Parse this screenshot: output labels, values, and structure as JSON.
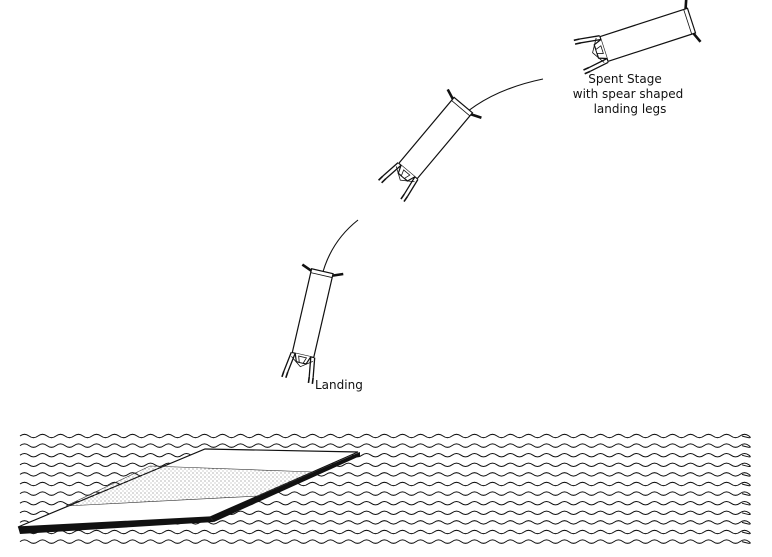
{
  "labels": {
    "spent_stage_line1": "Spent Stage",
    "spent_stage_line2": "with spear shaped",
    "spent_stage_line3": "landing legs",
    "landing": "Landing"
  },
  "colors": {
    "stroke": "#111111",
    "background": "#ffffff",
    "platform_edge": "#111111",
    "stipple": "#555555"
  }
}
